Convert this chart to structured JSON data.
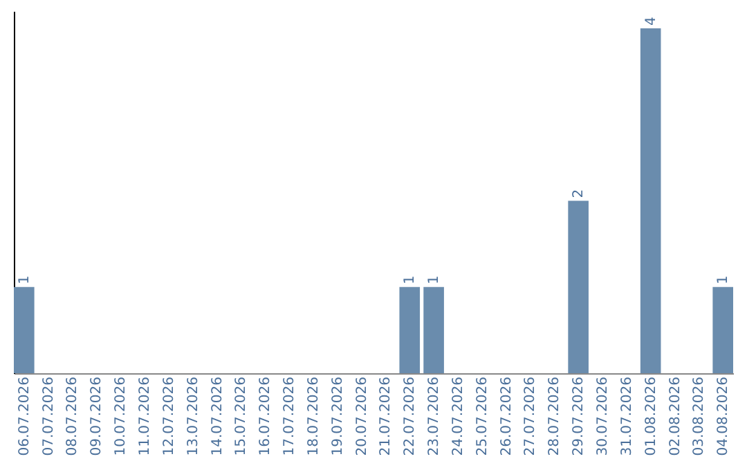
{
  "chart_data": {
    "type": "bar",
    "categories": [
      "06.07.2026",
      "07.07.2026",
      "08.07.2026",
      "09.07.2026",
      "10.07.2026",
      "11.07.2026",
      "12.07.2026",
      "13.07.2026",
      "14.07.2026",
      "15.07.2026",
      "16.07.2026",
      "17.07.2026",
      "18.07.2026",
      "19.07.2026",
      "20.07.2026",
      "21.07.2026",
      "22.07.2026",
      "23.07.2026",
      "24.07.2026",
      "25.07.2026",
      "26.07.2026",
      "27.07.2026",
      "28.07.2026",
      "29.07.2026",
      "30.07.2026",
      "31.07.2026",
      "01.08.2026",
      "02.08.2026",
      "03.08.2026",
      "04.08.2026"
    ],
    "values": [
      1,
      0,
      0,
      0,
      0,
      0,
      0,
      0,
      0,
      0,
      0,
      0,
      0,
      0,
      0,
      0,
      1,
      1,
      0,
      0,
      0,
      0,
      0,
      2,
      0,
      0,
      4,
      0,
      0,
      1
    ],
    "value_labels": [
      "1",
      null,
      null,
      null,
      null,
      null,
      null,
      null,
      null,
      null,
      null,
      null,
      null,
      null,
      null,
      null,
      "1",
      "1",
      null,
      null,
      null,
      null,
      null,
      "2",
      null,
      null,
      "4",
      null,
      null,
      "1"
    ],
    "color": "#6a8cad",
    "ylim": [
      0,
      4.2
    ],
    "tick_labels": "x",
    "grid": false
  }
}
